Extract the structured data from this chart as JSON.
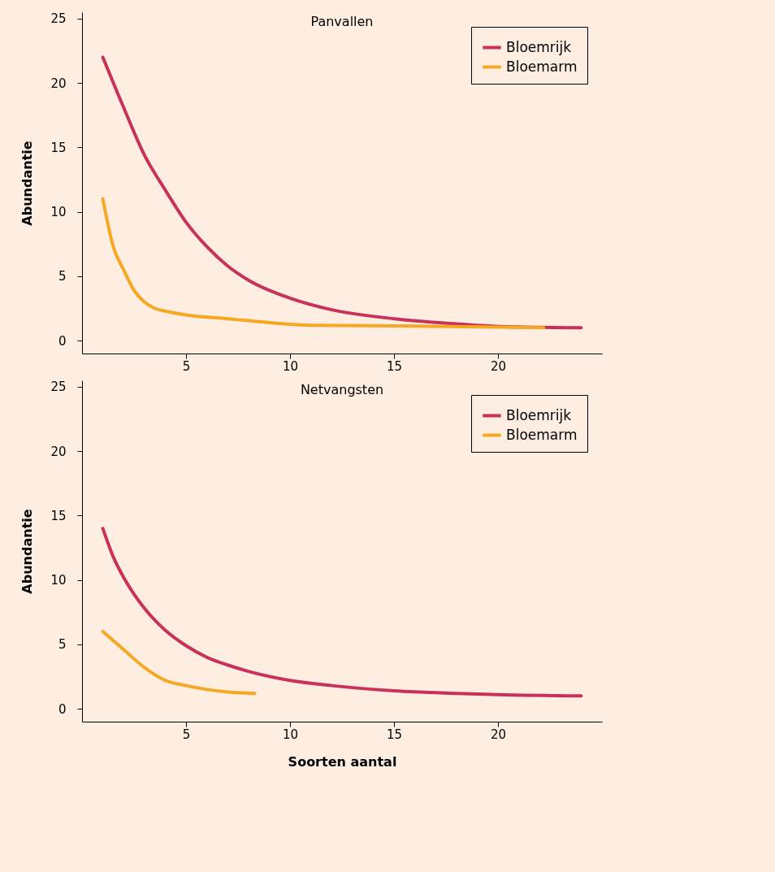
{
  "chart_data": [
    {
      "type": "line",
      "title": "Panvallen",
      "ylabel": "Abundantie",
      "xlim": [
        0,
        25
      ],
      "ylim": [
        -1,
        25.5
      ],
      "xticks": [
        5,
        10,
        15,
        20
      ],
      "yticks": [
        0,
        5,
        10,
        15,
        20,
        25
      ],
      "legend": "top right",
      "grid": false,
      "series": [
        {
          "name": "Bloemrijk",
          "color": "#c8325a",
          "x": [
            1,
            2,
            3,
            4,
            5,
            6,
            7,
            8,
            10,
            12,
            15,
            18,
            20,
            24
          ],
          "values": [
            22,
            18.1,
            14.4,
            11.7,
            9.2,
            7.3,
            5.8,
            4.7,
            3.3,
            2.4,
            1.7,
            1.3,
            1.1,
            1.0
          ]
        },
        {
          "name": "Bloemarm",
          "color": "#f7a823",
          "x": [
            1,
            1.5,
            2,
            2.5,
            3,
            3.5,
            4,
            5,
            7,
            9,
            11,
            15,
            20,
            22.2
          ],
          "values": [
            11,
            7.3,
            5.5,
            3.9,
            3.0,
            2.5,
            2.3,
            2.0,
            1.7,
            1.4,
            1.2,
            1.15,
            1.05,
            1.0
          ]
        }
      ]
    },
    {
      "type": "line",
      "title": "Netvangsten",
      "xlabel": "Soorten aantal",
      "ylabel": "Abundantie",
      "xlim": [
        0,
        25
      ],
      "ylim": [
        -1,
        25.5
      ],
      "xticks": [
        5,
        10,
        15,
        20
      ],
      "yticks": [
        0,
        5,
        10,
        15,
        20,
        25
      ],
      "legend": "top right",
      "grid": false,
      "series": [
        {
          "name": "Bloemrijk",
          "color": "#c8325a",
          "x": [
            1,
            1.5,
            2,
            3,
            4,
            5,
            6,
            7,
            8,
            10,
            12,
            15,
            18,
            20,
            24
          ],
          "values": [
            14,
            11.8,
            10.2,
            7.8,
            6.1,
            4.9,
            4.0,
            3.4,
            2.9,
            2.2,
            1.8,
            1.4,
            1.2,
            1.1,
            1.0
          ]
        },
        {
          "name": "Bloemarm",
          "color": "#f7a823",
          "x": [
            1,
            2,
            3,
            4,
            5,
            6,
            7,
            8.3
          ],
          "values": [
            6,
            4.6,
            3.2,
            2.2,
            1.8,
            1.5,
            1.3,
            1.2
          ]
        }
      ]
    }
  ]
}
